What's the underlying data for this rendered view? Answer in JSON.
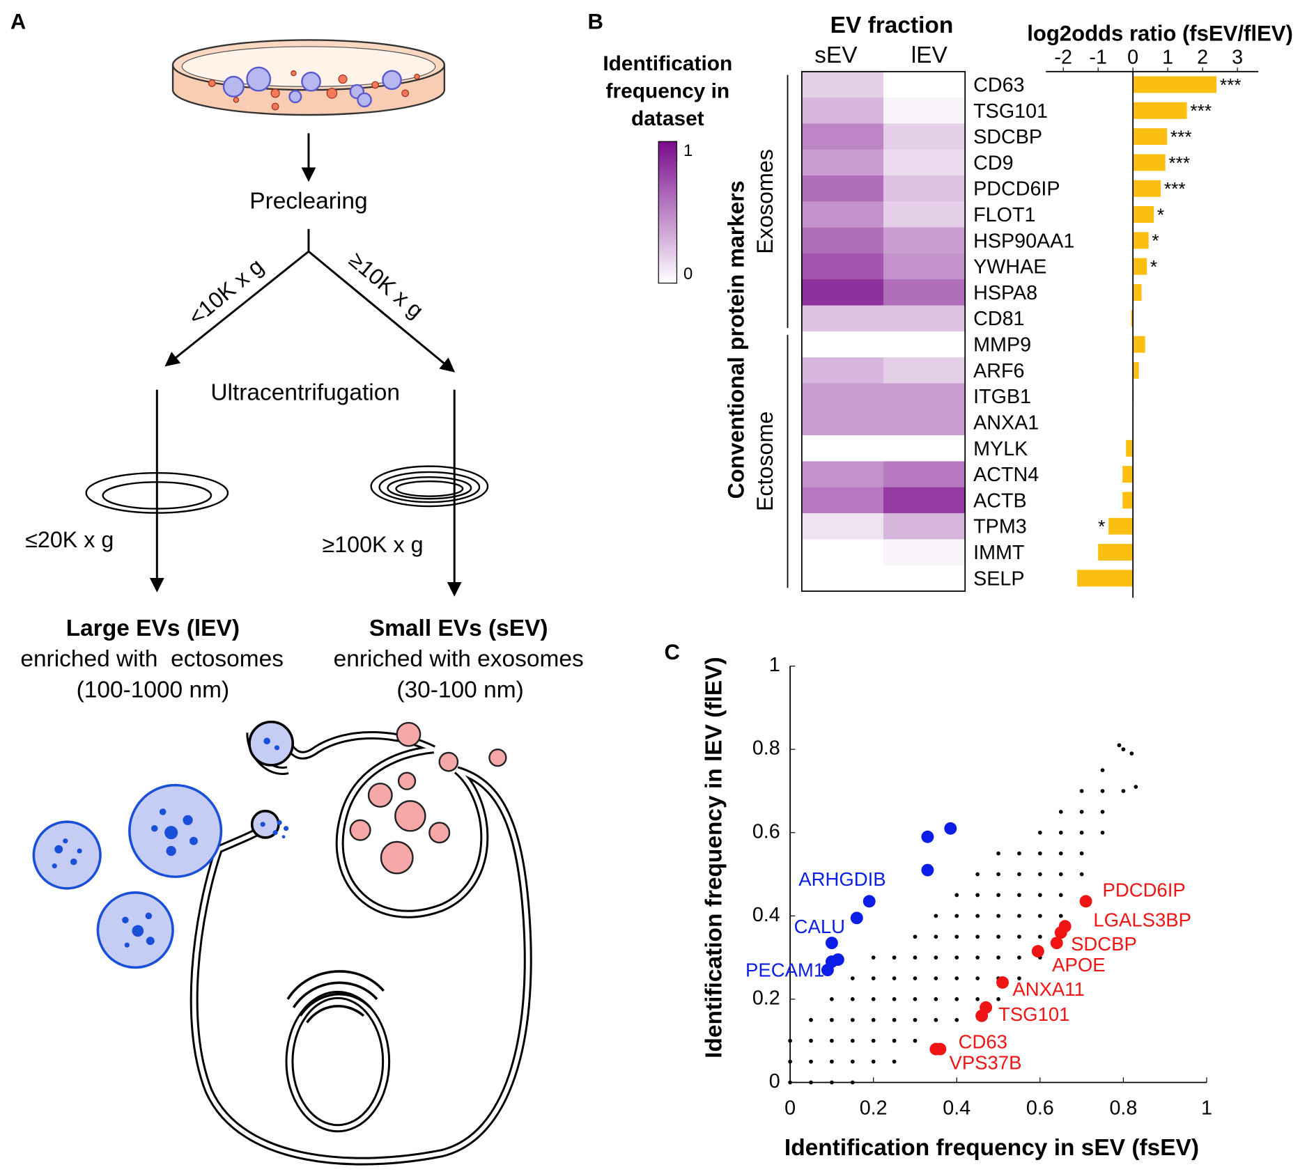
{
  "panel_a": {
    "label": "A",
    "step1": "Preclearing",
    "low_branch": "<10K x g",
    "high_branch": "≥10K x g",
    "step2": "Ultracentrifugation",
    "low_speed": "≤20K x g",
    "high_speed": "≥100K x g",
    "left_title": "Large EVs (lEV)",
    "left_line1": "enriched with  ectosomes",
    "left_line2": "(100-1000 nm)",
    "right_title": "Small EVs (sEV)",
    "right_line1": "enriched with exosomes",
    "right_line2": "(30-100 nm)"
  },
  "panel_b_label": "B",
  "panel_c_label": "C",
  "chart_data": [
    {
      "type": "heatmap",
      "title": "EV fraction",
      "categories": [
        "CD63",
        "TSG101",
        "SDCBP",
        "CD9",
        "PDCD6IP",
        "FLOT1",
        "HSP90AA1",
        "YWHAE",
        "HSPA8",
        "CD81",
        "MMP9",
        "ARF6",
        "ITGB1",
        "ANXA1",
        "MYLK",
        "ACTN4",
        "ACTB",
        "TPM3",
        "IMMT",
        "SELP"
      ],
      "series": [
        {
          "name": "sEV",
          "values": [
            0.2,
            0.3,
            0.5,
            0.4,
            0.6,
            0.45,
            0.6,
            0.7,
            0.85,
            0.25,
            0,
            0.3,
            0.4,
            0.4,
            0,
            0.45,
            0.55,
            0.12,
            0,
            0
          ]
        },
        {
          "name": "lEV",
          "values": [
            0,
            0.05,
            0.2,
            0.15,
            0.25,
            0.2,
            0.4,
            0.45,
            0.6,
            0.25,
            0,
            0.2,
            0.4,
            0.4,
            0,
            0.55,
            0.8,
            0.3,
            0.05,
            0
          ]
        }
      ],
      "ylabel": "Conventional protein markers",
      "groups": [
        {
          "name": "Exosomes",
          "start": 0,
          "end": 9
        },
        {
          "name": "Ectosome",
          "start": 10,
          "end": 19
        }
      ],
      "colormap": [
        "#ffffff",
        "#7a0b8c"
      ],
      "colorbar": {
        "title": [
          "Identification",
          "frequency in",
          "dataset"
        ],
        "clim": [
          0,
          1
        ],
        "ticks": [
          0,
          1
        ]
      }
    },
    {
      "type": "bar",
      "orientation": "horizontal",
      "title": "log2odds ratio (fsEV/flEV)",
      "values": [
        2.4,
        1.55,
        0.98,
        0.93,
        0.8,
        0.6,
        0.45,
        0.4,
        0.25,
        -0.05,
        0.35,
        0.17,
        0.02,
        0.01,
        -0.2,
        -0.3,
        -0.3,
        -0.7,
        -1.0,
        -1.6
      ],
      "annotations": [
        "***",
        "***",
        "***",
        "***",
        "***",
        "*",
        "*",
        "*",
        null,
        null,
        null,
        null,
        null,
        null,
        null,
        null,
        null,
        "*",
        null,
        null
      ],
      "color": "#fbbf11",
      "xlim": [
        -2.5,
        3.6
      ],
      "xticks": [
        -2,
        -1,
        0,
        1,
        2,
        3
      ]
    },
    {
      "type": "scatter",
      "xlabel": "Identification frequency in sEV (fsEV)",
      "ylabel": "Identification frequency in lEV (flEV)",
      "xlim": [
        0,
        1
      ],
      "ylim": [
        0,
        1
      ],
      "xticks": [
        0,
        0.2,
        0.4,
        0.6,
        0.8,
        1
      ],
      "yticks": [
        0,
        0.2,
        0.4,
        0.6,
        0.8,
        1
      ],
      "series": [
        {
          "color": "#000000",
          "size": 2.4,
          "x": [
            0,
            0,
            0,
            0.05,
            0.05,
            0.05,
            0.05,
            0.1,
            0.1,
            0.1,
            0.1,
            0.1,
            0.15,
            0.15,
            0.15,
            0.15,
            0.15,
            0.15,
            0.2,
            0.2,
            0.2,
            0.2,
            0.2,
            0.2,
            0.25,
            0.25,
            0.25,
            0.25,
            0.25,
            0.25,
            0.3,
            0.3,
            0.3,
            0.3,
            0.3,
            0.3,
            0.35,
            0.35,
            0.35,
            0.35,
            0.35,
            0.35,
            0.4,
            0.4,
            0.4,
            0.4,
            0.4,
            0.4,
            0.4,
            0.45,
            0.45,
            0.45,
            0.45,
            0.45,
            0.45,
            0.45,
            0.5,
            0.5,
            0.5,
            0.5,
            0.5,
            0.5,
            0.5,
            0.5,
            0.55,
            0.55,
            0.55,
            0.55,
            0.55,
            0.55,
            0.55,
            0.6,
            0.6,
            0.6,
            0.6,
            0.6,
            0.6,
            0.6,
            0.65,
            0.65,
            0.65,
            0.65,
            0.65,
            0.65,
            0.7,
            0.7,
            0.7,
            0.7,
            0.7,
            0.75,
            0.75,
            0.75,
            0.75,
            0.8,
            0.8,
            0.82,
            0.83,
            0.79
          ],
          "values": [
            0,
            0.05,
            0.1,
            0,
            0.05,
            0.1,
            0.15,
            0,
            0.05,
            0.1,
            0.15,
            0.2,
            0,
            0.05,
            0.1,
            0.15,
            0.2,
            0.25,
            0.05,
            0.1,
            0.15,
            0.2,
            0.25,
            0.3,
            0.05,
            0.1,
            0.15,
            0.2,
            0.25,
            0.3,
            0.1,
            0.15,
            0.2,
            0.25,
            0.3,
            0.35,
            0.15,
            0.2,
            0.25,
            0.3,
            0.35,
            0.4,
            0.15,
            0.2,
            0.25,
            0.3,
            0.35,
            0.4,
            0.45,
            0.2,
            0.25,
            0.3,
            0.35,
            0.4,
            0.45,
            0.5,
            0.2,
            0.25,
            0.3,
            0.35,
            0.4,
            0.45,
            0.5,
            0.55,
            0.25,
            0.3,
            0.35,
            0.4,
            0.45,
            0.5,
            0.55,
            0.3,
            0.35,
            0.4,
            0.45,
            0.5,
            0.55,
            0.6,
            0.4,
            0.45,
            0.5,
            0.55,
            0.6,
            0.65,
            0.5,
            0.55,
            0.6,
            0.65,
            0.7,
            0.6,
            0.65,
            0.7,
            0.75,
            0.7,
            0.8,
            0.79,
            0.71,
            0.81
          ]
        },
        {
          "color": "#0a1ee8",
          "size": 7.5,
          "x": [
            0.09,
            0.1,
            0.115,
            0.1,
            0.16,
            0.19,
            0.33,
            0.33,
            0.385
          ],
          "values": [
            0.27,
            0.29,
            0.295,
            0.335,
            0.395,
            0.435,
            0.51,
            0.59,
            0.61
          ],
          "labels": [
            "PECAM1",
            null,
            null,
            null,
            "CALU",
            "ARHGDIB",
            null,
            null,
            null
          ]
        },
        {
          "color": "#f01414",
          "size": 7.5,
          "x": [
            0.71,
            0.66,
            0.65,
            0.64,
            0.595,
            0.51,
            0.47,
            0.46,
            0.36,
            0.35
          ],
          "values": [
            0.435,
            0.375,
            0.36,
            0.335,
            0.315,
            0.24,
            0.18,
            0.16,
            0.08,
            0.08
          ],
          "labels": [
            "PDCD6IP",
            "LGALS3BP",
            null,
            "SDCBP",
            "APOE",
            "ANXA11",
            "TSG101",
            null,
            "CD63",
            "VPS37B"
          ]
        }
      ]
    }
  ]
}
